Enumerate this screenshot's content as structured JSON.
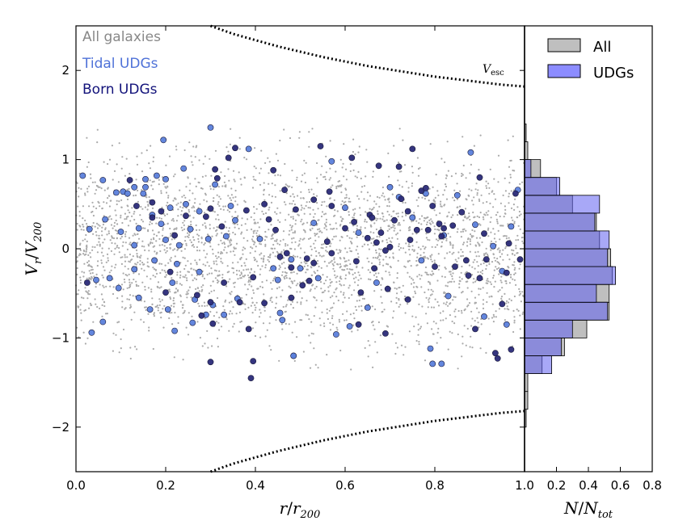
{
  "chart_data": [
    {
      "type": "scatter",
      "xlabel": "r/r200",
      "ylabel": "Vr/V200",
      "xlim": [
        0.0,
        1.0
      ],
      "ylim": [
        -2.5,
        2.5
      ],
      "xticks": [
        "0.0",
        "0.2",
        "0.4",
        "0.6",
        "0.8",
        "1.0"
      ],
      "yticks": [
        "−2",
        "−1",
        "0",
        "1",
        "2"
      ],
      "grid": false,
      "legend_text": [
        "All galaxies",
        "Tidal UDGs",
        "Born UDGs"
      ],
      "legend_placement": "top-left",
      "annotation": "Vesc",
      "escape_velocity_curve": {
        "style": "dotted",
        "color": "#000000",
        "x": [
          0.3,
          0.35,
          0.4,
          0.45,
          0.5,
          0.55,
          0.6,
          0.65,
          0.7,
          0.75,
          0.8,
          0.85,
          0.9,
          0.95,
          1.0
        ],
        "y": [
          2.5,
          2.41,
          2.34,
          2.27,
          2.21,
          2.15,
          2.1,
          2.05,
          2.01,
          1.97,
          1.93,
          1.9,
          1.87,
          1.84,
          1.82
        ]
      },
      "series": [
        {
          "name": "All galaxies",
          "color": "#aaaaaa",
          "marker_size": "small",
          "values_note": "dense uniform cloud, ~3000 points, x in [0,1], |y| < ~1.6"
        },
        {
          "name": "Tidal UDGs",
          "color": "#5b7fdb",
          "points": [
            [
              0.015,
              0.82
            ],
            [
              0.03,
              0.22
            ],
            [
              0.035,
              -0.94
            ],
            [
              0.045,
              -0.35
            ],
            [
              0.06,
              0.77
            ],
            [
              0.065,
              0.33
            ],
            [
              0.06,
              -0.82
            ],
            [
              0.075,
              -0.33
            ],
            [
              0.09,
              0.63
            ],
            [
              0.1,
              0.19
            ],
            [
              0.095,
              -0.44
            ],
            [
              0.105,
              0.64
            ],
            [
              0.115,
              0.62
            ],
            [
              0.13,
              0.69
            ],
            [
              0.13,
              0.04
            ],
            [
              0.13,
              -0.23
            ],
            [
              0.14,
              0.23
            ],
            [
              0.14,
              -0.55
            ],
            [
              0.15,
              0.62
            ],
            [
              0.155,
              0.69
            ],
            [
              0.155,
              0.78
            ],
            [
              0.165,
              -0.68
            ],
            [
              0.17,
              0.38
            ],
            [
              0.175,
              -0.13
            ],
            [
              0.18,
              0.82
            ],
            [
              0.19,
              0.28
            ],
            [
              0.195,
              1.22
            ],
            [
              0.2,
              0.78
            ],
            [
              0.2,
              0.1
            ],
            [
              0.205,
              -0.68
            ],
            [
              0.21,
              0.46
            ],
            [
              0.215,
              -0.38
            ],
            [
              0.22,
              -0.92
            ],
            [
              0.225,
              -0.17
            ],
            [
              0.23,
              0.04
            ],
            [
              0.24,
              0.9
            ],
            [
              0.245,
              0.5
            ],
            [
              0.255,
              0.22
            ],
            [
              0.26,
              -0.83
            ],
            [
              0.265,
              -0.57
            ],
            [
              0.275,
              -0.26
            ],
            [
              0.275,
              0.42
            ],
            [
              0.29,
              -0.74
            ],
            [
              0.295,
              0.11
            ],
            [
              0.3,
              1.36
            ],
            [
              0.305,
              -0.63
            ],
            [
              0.31,
              0.72
            ],
            [
              0.33,
              -0.74
            ],
            [
              0.335,
              0.14
            ],
            [
              0.345,
              0.48
            ],
            [
              0.355,
              0.32
            ],
            [
              0.36,
              -0.56
            ],
            [
              0.385,
              1.12
            ],
            [
              0.41,
              0.11
            ],
            [
              0.44,
              -0.22
            ],
            [
              0.45,
              -0.35
            ],
            [
              0.455,
              -0.72
            ],
            [
              0.46,
              -0.8
            ],
            [
              0.48,
              -0.12
            ],
            [
              0.485,
              -1.2
            ],
            [
              0.5,
              -0.22
            ],
            [
              0.53,
              0.29
            ],
            [
              0.54,
              -0.33
            ],
            [
              0.57,
              0.98
            ],
            [
              0.58,
              -0.96
            ],
            [
              0.6,
              0.46
            ],
            [
              0.61,
              -0.87
            ],
            [
              0.63,
              0.18
            ],
            [
              0.65,
              -0.66
            ],
            [
              0.67,
              -0.38
            ],
            [
              0.7,
              0.69
            ],
            [
              0.72,
              0.58
            ],
            [
              0.75,
              0.35
            ],
            [
              0.77,
              -0.13
            ],
            [
              0.78,
              0.62
            ],
            [
              0.79,
              -1.12
            ],
            [
              0.82,
              0.15
            ],
            [
              0.83,
              -0.53
            ],
            [
              0.85,
              0.6
            ],
            [
              0.88,
              1.08
            ],
            [
              0.89,
              0.27
            ],
            [
              0.91,
              -0.76
            ],
            [
              0.93,
              0.03
            ],
            [
              0.95,
              -0.25
            ],
            [
              0.96,
              -0.85
            ],
            [
              0.97,
              0.25
            ],
            [
              0.985,
              0.66
            ],
            [
              0.795,
              -1.29
            ],
            [
              0.815,
              -1.29
            ],
            [
              0.485,
              -1.2
            ]
          ]
        },
        {
          "name": "Born UDGs",
          "color": "#2a2a78",
          "points": [
            [
              0.025,
              -0.38
            ],
            [
              0.12,
              0.77
            ],
            [
              0.135,
              0.48
            ],
            [
              0.17,
              0.52
            ],
            [
              0.17,
              0.35
            ],
            [
              0.19,
              0.42
            ],
            [
              0.2,
              -0.49
            ],
            [
              0.21,
              -0.26
            ],
            [
              0.22,
              0.15
            ],
            [
              0.245,
              0.37
            ],
            [
              0.27,
              -0.52
            ],
            [
              0.28,
              -0.75
            ],
            [
              0.29,
              0.36
            ],
            [
              0.3,
              0.45
            ],
            [
              0.3,
              -0.6
            ],
            [
              0.305,
              -0.84
            ],
            [
              0.3,
              -1.27
            ],
            [
              0.31,
              0.89
            ],
            [
              0.315,
              0.79
            ],
            [
              0.325,
              0.25
            ],
            [
              0.33,
              -0.38
            ],
            [
              0.34,
              1.02
            ],
            [
              0.355,
              1.13
            ],
            [
              0.365,
              -0.6
            ],
            [
              0.38,
              0.43
            ],
            [
              0.385,
              -0.9
            ],
            [
              0.39,
              -1.45
            ],
            [
              0.395,
              -1.26
            ],
            [
              0.395,
              -0.32
            ],
            [
              0.42,
              0.5
            ],
            [
              0.42,
              -0.61
            ],
            [
              0.43,
              0.33
            ],
            [
              0.44,
              0.88
            ],
            [
              0.445,
              0.21
            ],
            [
              0.455,
              -0.09
            ],
            [
              0.465,
              0.66
            ],
            [
              0.47,
              -0.05
            ],
            [
              0.48,
              -0.21
            ],
            [
              0.48,
              -0.55
            ],
            [
              0.49,
              0.44
            ],
            [
              0.505,
              -0.41
            ],
            [
              0.515,
              -0.11
            ],
            [
              0.52,
              -0.36
            ],
            [
              0.53,
              -0.16
            ],
            [
              0.53,
              0.55
            ],
            [
              0.545,
              1.15
            ],
            [
              0.56,
              0.08
            ],
            [
              0.565,
              0.64
            ],
            [
              0.57,
              -0.05
            ],
            [
              0.57,
              0.48
            ],
            [
              0.6,
              0.23
            ],
            [
              0.615,
              1.02
            ],
            [
              0.62,
              0.3
            ],
            [
              0.625,
              -0.14
            ],
            [
              0.63,
              -0.85
            ],
            [
              0.635,
              -0.49
            ],
            [
              0.65,
              0.12
            ],
            [
              0.655,
              0.38
            ],
            [
              0.66,
              0.35
            ],
            [
              0.665,
              -0.22
            ],
            [
              0.67,
              0.07
            ],
            [
              0.675,
              0.93
            ],
            [
              0.68,
              0.18
            ],
            [
              0.69,
              -0.02
            ],
            [
              0.69,
              -0.95
            ],
            [
              0.695,
              -0.45
            ],
            [
              0.7,
              0.02
            ],
            [
              0.71,
              0.32
            ],
            [
              0.72,
              0.92
            ],
            [
              0.725,
              0.56
            ],
            [
              0.74,
              0.42
            ],
            [
              0.74,
              -0.57
            ],
            [
              0.745,
              0.1
            ],
            [
              0.75,
              1.12
            ],
            [
              0.76,
              0.21
            ],
            [
              0.77,
              0.65
            ],
            [
              0.78,
              0.68
            ],
            [
              0.785,
              0.21
            ],
            [
              0.795,
              0.48
            ],
            [
              0.8,
              -0.2
            ],
            [
              0.81,
              0.28
            ],
            [
              0.815,
              0.14
            ],
            [
              0.82,
              0.23
            ],
            [
              0.84,
              0.26
            ],
            [
              0.845,
              -0.2
            ],
            [
              0.86,
              0.41
            ],
            [
              0.87,
              -0.13
            ],
            [
              0.875,
              -0.3
            ],
            [
              0.89,
              -0.9
            ],
            [
              0.9,
              0.8
            ],
            [
              0.9,
              -0.33
            ],
            [
              0.91,
              0.17
            ],
            [
              0.915,
              -0.12
            ],
            [
              0.935,
              -1.17
            ],
            [
              0.94,
              -1.23
            ],
            [
              0.95,
              -0.62
            ],
            [
              0.96,
              -0.27
            ],
            [
              0.965,
              0.06
            ],
            [
              0.97,
              -1.13
            ],
            [
              0.98,
              0.62
            ],
            [
              0.99,
              -0.12
            ]
          ]
        }
      ]
    },
    {
      "type": "bar",
      "orientation": "horizontal",
      "xlabel": "N/Ntot",
      "xlim": [
        0.0,
        0.8
      ],
      "xticks": [
        "0.2",
        "0.4",
        "0.6",
        "0.8"
      ],
      "legend": [
        "All",
        "UDGs"
      ],
      "legend_placement": "top-right",
      "bin_edges": [
        -2.0,
        -1.8,
        -1.6,
        -1.4,
        -1.2,
        -1.0,
        -0.8,
        -0.6,
        -0.4,
        -0.2,
        0.0,
        0.2,
        0.4,
        0.6,
        0.8,
        1.0,
        1.2,
        1.4,
        1.6
      ],
      "series": [
        {
          "name": "All",
          "color": "#aaaaaa",
          "values": [
            0.01,
            0.02,
            0.02,
            0.11,
            0.25,
            0.39,
            0.53,
            0.53,
            0.55,
            0.54,
            0.47,
            0.45,
            0.3,
            0.2,
            0.1,
            0.02,
            0.01,
            0.0
          ]
        },
        {
          "name": "UDGs",
          "color": "#6060f0",
          "values": [
            0.0,
            0.0,
            0.0,
            0.17,
            0.23,
            0.3,
            0.52,
            0.45,
            0.57,
            0.52,
            0.53,
            0.44,
            0.47,
            0.22,
            0.04,
            0.0,
            0.0,
            0.0
          ]
        }
      ]
    }
  ]
}
